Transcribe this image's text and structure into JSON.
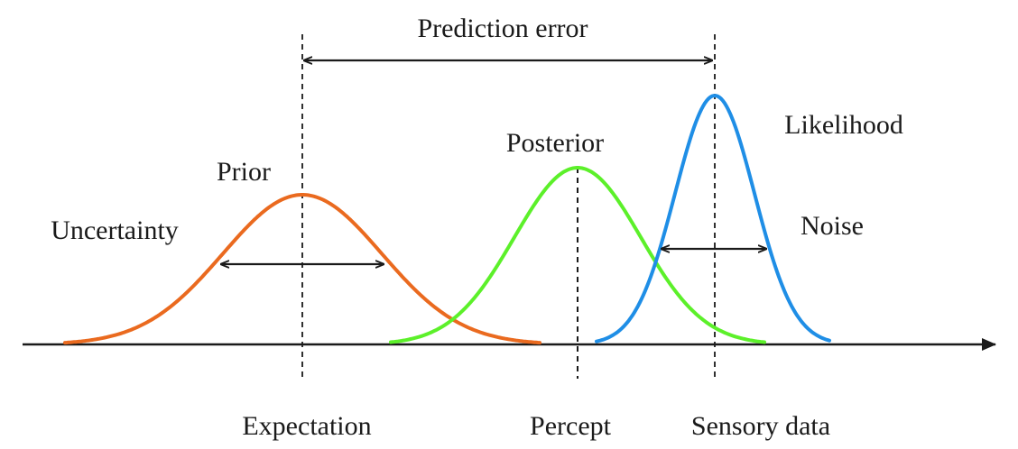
{
  "labels": {
    "prediction_error": "Prediction error",
    "prior": "Prior",
    "posterior": "Posterior",
    "likelihood": "Likelihood",
    "uncertainty": "Uncertainty",
    "noise": "Noise",
    "expectation": "Expectation",
    "percept": "Percept",
    "sensory_data": "Sensory data"
  },
  "colors": {
    "prior": "#ea6a1f",
    "posterior": "#5cf02a",
    "likelihood": "#1f8ee6",
    "ink": "#1a1a1a"
  },
  "icons": [
    "double-arrow-icon",
    "axis-arrow-icon"
  ]
}
